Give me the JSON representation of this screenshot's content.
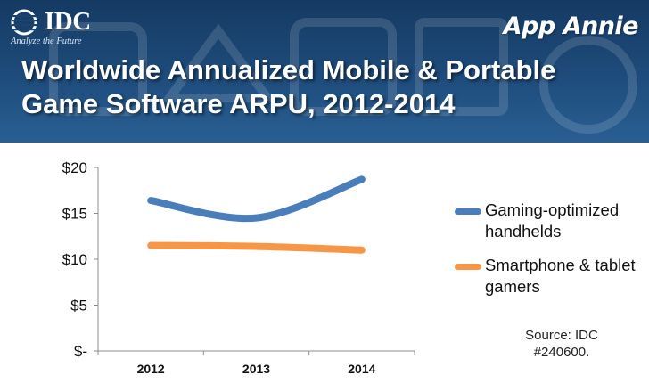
{
  "header": {
    "idc_logo_text": "IDC",
    "idc_tagline": "Analyze the Future",
    "app_annie_logo_text": "App Annie",
    "colors": {
      "background": "#1e4c7c"
    }
  },
  "source_note": [
    "Source: IDC",
    "#240600."
  ],
  "chart_data": {
    "type": "line",
    "title": "Worldwide Annualized Mobile & Portable Game Software ARPU, 2012-2014",
    "x": [
      "2012",
      "2013",
      "2014"
    ],
    "xlabel": "",
    "ylabel": "",
    "ylim": [
      0,
      20
    ],
    "yticks": [
      {
        "value": 20,
        "label": "$20"
      },
      {
        "value": 15,
        "label": "$15"
      },
      {
        "value": 10,
        "label": "$10"
      },
      {
        "value": 5,
        "label": "$5"
      },
      {
        "value": 0,
        "label": "$-"
      }
    ],
    "series": [
      {
        "name": "Gaming-optimized handhelds",
        "values": [
          16.4,
          14.5,
          18.7
        ],
        "color": "#4a7ebb"
      },
      {
        "name": "Smartphone & tablet gamers",
        "values": [
          11.5,
          11.4,
          11.0
        ],
        "color": "#f79646"
      }
    ],
    "smooth": true,
    "grid": false,
    "legend_position": "right"
  }
}
